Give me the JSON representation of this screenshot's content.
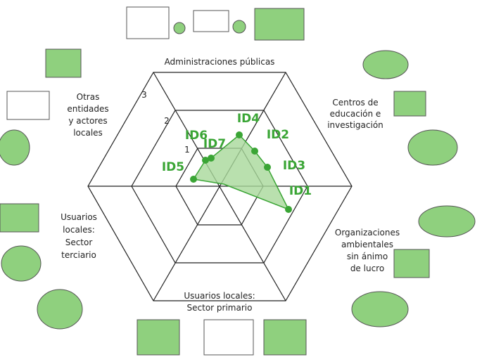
{
  "diagram": {
    "sectors": [
      {
        "lines": [
          "Administraciones públicas"
        ]
      },
      {
        "lines": [
          "Centros de",
          "educación e",
          "investigación"
        ]
      },
      {
        "lines": [
          "Organizaciones",
          "ambientales",
          "sin ánimo",
          "de lucro"
        ]
      },
      {
        "lines": [
          "Usuarios locales:",
          "Sector primario"
        ]
      },
      {
        "lines": [
          "Usuarios",
          "locales:",
          "Sector",
          "terciario"
        ]
      },
      {
        "lines": [
          "Otras",
          "entidades",
          "y actores",
          "locales"
        ]
      }
    ],
    "rings": [
      "1",
      "2",
      "3"
    ],
    "points": [
      "ID1",
      "ID2",
      "ID3",
      "ID4",
      "ID5",
      "ID6",
      "ID7"
    ]
  }
}
